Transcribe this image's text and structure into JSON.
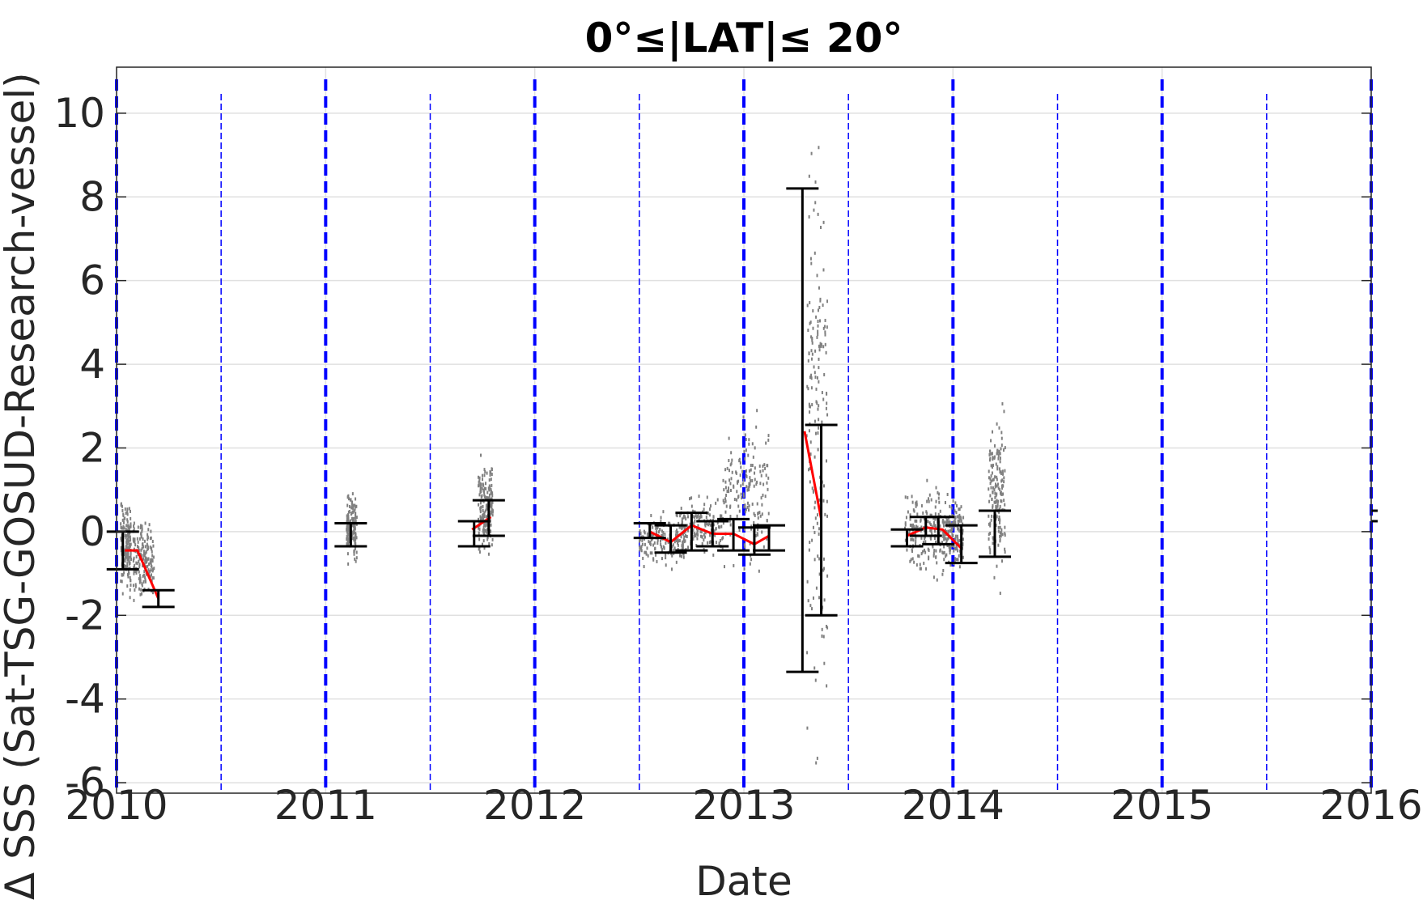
{
  "chart_data": {
    "type": "scatter",
    "title": "0°≤|LAT|≤ 20°",
    "xlabel": "Date",
    "ylabel": "Δ SSS (Sat-TSG-GOSUD-Research-vessel)",
    "xlim": [
      2010,
      2016
    ],
    "ylim": [
      -6.25,
      11.1
    ],
    "x_ticks": [
      2010,
      2011,
      2012,
      2013,
      2014,
      2015,
      2016
    ],
    "y_ticks": [
      -6,
      -4,
      -2,
      0,
      2,
      4,
      6,
      8,
      10
    ],
    "grid": true,
    "colors": {
      "raw": "#808080",
      "mean_line": "#ff0000",
      "error_bars": "#000000",
      "year_lines": "#0000ff",
      "gridlines": "#e0e0e0"
    },
    "year_boundaries_thick": [
      2010,
      2011,
      2012,
      2013,
      2014,
      2015,
      2016
    ],
    "half_year_boundaries_thin": [
      2010.5,
      2011.5,
      2012.5,
      2013.5,
      2014.5,
      2015.5
    ],
    "raw_clusters": [
      {
        "x": [
          2010.02,
          2010.07
        ],
        "y": [
          -1.6,
          0.85
        ]
      },
      {
        "x": [
          2010.08,
          2010.18
        ],
        "y": [
          -1.8,
          0.4
        ]
      },
      {
        "x": [
          2011.1,
          2011.15
        ],
        "y": [
          -0.8,
          0.95
        ]
      },
      {
        "x": [
          2011.73,
          2011.8
        ],
        "y": [
          -0.85,
          2.05
        ]
      },
      {
        "x": [
          2012.5,
          2012.72
        ],
        "y": [
          -0.9,
          0.5
        ]
      },
      {
        "x": [
          2012.7,
          2012.9
        ],
        "y": [
          -0.7,
          0.9
        ]
      },
      {
        "x": [
          2012.9,
          2013.12
        ],
        "y": [
          -1.0,
          2.9
        ]
      },
      {
        "x": [
          2013.3,
          2013.4
        ],
        "y": [
          -6.3,
          11.1
        ]
      },
      {
        "x": [
          2013.77,
          2013.95
        ],
        "y": [
          -1.3,
          1.4
        ]
      },
      {
        "x": [
          2013.95,
          2014.05
        ],
        "y": [
          -1.0,
          1.0
        ]
      },
      {
        "x": [
          2014.17,
          2014.25
        ],
        "y": [
          -1.5,
          3.1
        ]
      }
    ],
    "mean_series": [
      {
        "x": [
          2010.04,
          2010.1,
          2010.2
        ],
        "y": [
          -0.45,
          -0.45,
          -1.6
        ]
      },
      {
        "x": [
          2011.7,
          2011.79
        ],
        "y": [
          0.05,
          0.35
        ]
      },
      {
        "x": [
          2012.55,
          2012.65,
          2012.75,
          2012.85,
          2012.95,
          2013.05,
          2013.12
        ],
        "y": [
          0.0,
          -0.25,
          0.15,
          -0.05,
          -0.05,
          -0.3,
          -0.1
        ]
      },
      {
        "x": [
          2013.29,
          2013.37
        ],
        "y": [
          2.4,
          0.3
        ]
      },
      {
        "x": [
          2013.78,
          2013.87,
          2013.95,
          2014.04
        ],
        "y": [
          -0.1,
          0.1,
          0.05,
          -0.4
        ]
      }
    ],
    "error_bars": [
      {
        "x": 2010.03,
        "low": -0.9,
        "high": 0.0
      },
      {
        "x": 2010.2,
        "low": -1.8,
        "high": -1.4
      },
      {
        "x": 2011.12,
        "low": -0.35,
        "high": 0.2
      },
      {
        "x": 2011.71,
        "low": -0.35,
        "high": 0.25
      },
      {
        "x": 2011.78,
        "low": -0.1,
        "high": 0.75
      },
      {
        "x": 2012.55,
        "low": -0.15,
        "high": 0.2
      },
      {
        "x": 2012.65,
        "low": -0.5,
        "high": 0.15
      },
      {
        "x": 2012.75,
        "low": -0.45,
        "high": 0.45
      },
      {
        "x": 2012.85,
        "low": -0.35,
        "high": 0.25
      },
      {
        "x": 2012.95,
        "low": -0.45,
        "high": 0.3
      },
      {
        "x": 2013.05,
        "low": -0.55,
        "high": 0.1
      },
      {
        "x": 2013.12,
        "low": -0.45,
        "high": 0.15
      },
      {
        "x": 2013.28,
        "low": -3.35,
        "high": 8.2
      },
      {
        "x": 2013.37,
        "low": -2.0,
        "high": 2.55
      },
      {
        "x": 2013.78,
        "low": -0.35,
        "high": 0.05
      },
      {
        "x": 2013.87,
        "low": -0.1,
        "high": 0.35
      },
      {
        "x": 2013.93,
        "low": -0.3,
        "high": 0.35
      },
      {
        "x": 2014.04,
        "low": -0.75,
        "high": 0.15
      },
      {
        "x": 2014.2,
        "low": -0.6,
        "high": 0.5
      }
    ],
    "edge_marks": [
      {
        "x": 2016.0,
        "y": 0.25
      },
      {
        "x": 2016.0,
        "y": 0.5
      }
    ]
  }
}
